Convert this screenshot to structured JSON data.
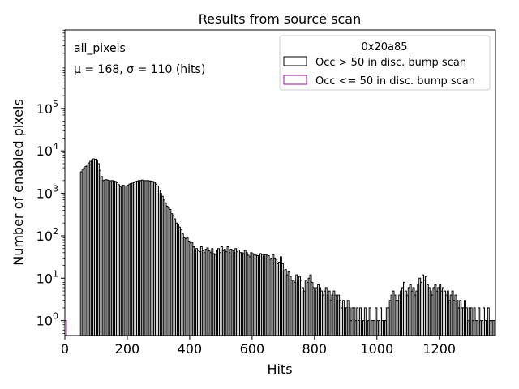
{
  "chart_data": {
    "type": "histogram",
    "title": "Results from source scan",
    "xlabel": "Hits",
    "ylabel": "Number of enabled pixels",
    "xlim": [
      0,
      1380
    ],
    "ylim_log10": [
      -0.35,
      6.85
    ],
    "yscale": "log",
    "bin_width": 5,
    "x_ticks": [
      0,
      200,
      400,
      600,
      800,
      1000,
      1200
    ],
    "y_ticks": [
      {
        "exp": 0,
        "label": "10",
        "sup": "0"
      },
      {
        "exp": 1,
        "label": "10",
        "sup": "1"
      },
      {
        "exp": 2,
        "label": "10",
        "sup": "2"
      },
      {
        "exp": 3,
        "label": "10",
        "sup": "3"
      },
      {
        "exp": 4,
        "label": "10",
        "sup": "4"
      },
      {
        "exp": 5,
        "label": "10",
        "sup": "5"
      }
    ],
    "annotations": {
      "line1": "all_pixels",
      "line2": "μ = 168, σ = 110 (hits)"
    },
    "legend": {
      "title": "0x20a85",
      "position": "top-right",
      "entries": [
        {
          "label": "Occ > 50 in disc. bump scan",
          "color": "#000000"
        },
        {
          "label": "Occ <= 50 in disc. bump scan",
          "color": "#aa00aa"
        }
      ]
    },
    "series": [
      {
        "name": "Occ > 50 in disc. bump scan",
        "color": "#000000",
        "points": [
          [
            50,
            3200
          ],
          [
            55,
            3700
          ],
          [
            60,
            4000
          ],
          [
            65,
            4300
          ],
          [
            70,
            4700
          ],
          [
            75,
            5200
          ],
          [
            80,
            5700
          ],
          [
            85,
            6200
          ],
          [
            90,
            6500
          ],
          [
            95,
            6400
          ],
          [
            100,
            6000
          ],
          [
            105,
            5000
          ],
          [
            110,
            3500
          ],
          [
            115,
            2500
          ],
          [
            120,
            2000
          ],
          [
            125,
            2050
          ],
          [
            130,
            2100
          ],
          [
            135,
            2050
          ],
          [
            140,
            2000
          ],
          [
            145,
            2000
          ],
          [
            150,
            2000
          ],
          [
            155,
            1950
          ],
          [
            160,
            1900
          ],
          [
            165,
            1800
          ],
          [
            170,
            1600
          ],
          [
            175,
            1450
          ],
          [
            180,
            1500
          ],
          [
            185,
            1550
          ],
          [
            190,
            1500
          ],
          [
            195,
            1500
          ],
          [
            200,
            1550
          ],
          [
            205,
            1650
          ],
          [
            210,
            1700
          ],
          [
            215,
            1750
          ],
          [
            220,
            1800
          ],
          [
            225,
            1900
          ],
          [
            230,
            1950
          ],
          [
            235,
            2000
          ],
          [
            240,
            2000
          ],
          [
            245,
            2050
          ],
          [
            250,
            2000
          ],
          [
            255,
            2000
          ],
          [
            260,
            2000
          ],
          [
            265,
            2000
          ],
          [
            270,
            1950
          ],
          [
            275,
            1950
          ],
          [
            280,
            1900
          ],
          [
            285,
            1800
          ],
          [
            290,
            1650
          ],
          [
            295,
            1500
          ],
          [
            300,
            1200
          ],
          [
            305,
            1000
          ],
          [
            310,
            850
          ],
          [
            315,
            700
          ],
          [
            320,
            600
          ],
          [
            325,
            500
          ],
          [
            330,
            450
          ],
          [
            335,
            420
          ],
          [
            340,
            330
          ],
          [
            345,
            300
          ],
          [
            350,
            250
          ],
          [
            355,
            200
          ],
          [
            360,
            180
          ],
          [
            365,
            160
          ],
          [
            370,
            140
          ],
          [
            375,
            110
          ],
          [
            380,
            90
          ],
          [
            385,
            85
          ],
          [
            390,
            90
          ],
          [
            395,
            75
          ],
          [
            400,
            68
          ],
          [
            405,
            70
          ],
          [
            410,
            55
          ],
          [
            415,
            45
          ],
          [
            420,
            50
          ],
          [
            425,
            45
          ],
          [
            430,
            42
          ],
          [
            435,
            55
          ],
          [
            440,
            45
          ],
          [
            445,
            40
          ],
          [
            450,
            48
          ],
          [
            455,
            52
          ],
          [
            460,
            44
          ],
          [
            465,
            40
          ],
          [
            470,
            50
          ],
          [
            475,
            38
          ],
          [
            480,
            36
          ],
          [
            485,
            45
          ],
          [
            490,
            50
          ],
          [
            495,
            40
          ],
          [
            500,
            55
          ],
          [
            505,
            45
          ],
          [
            510,
            48
          ],
          [
            515,
            42
          ],
          [
            520,
            55
          ],
          [
            525,
            40
          ],
          [
            530,
            48
          ],
          [
            535,
            45
          ],
          [
            540,
            40
          ],
          [
            545,
            50
          ],
          [
            550,
            42
          ],
          [
            555,
            46
          ],
          [
            560,
            40
          ],
          [
            565,
            40
          ],
          [
            570,
            38
          ],
          [
            575,
            45
          ],
          [
            580,
            40
          ],
          [
            585,
            35
          ],
          [
            590,
            32
          ],
          [
            595,
            40
          ],
          [
            600,
            38
          ],
          [
            605,
            36
          ],
          [
            610,
            35
          ],
          [
            615,
            34
          ],
          [
            620,
            30
          ],
          [
            625,
            38
          ],
          [
            630,
            36
          ],
          [
            635,
            32
          ],
          [
            640,
            36
          ],
          [
            645,
            35
          ],
          [
            650,
            34
          ],
          [
            655,
            28
          ],
          [
            660,
            30
          ],
          [
            665,
            36
          ],
          [
            670,
            30
          ],
          [
            675,
            28
          ],
          [
            680,
            22
          ],
          [
            685,
            24
          ],
          [
            690,
            32
          ],
          [
            695,
            22
          ],
          [
            700,
            15
          ],
          [
            705,
            16
          ],
          [
            710,
            12
          ],
          [
            715,
            14
          ],
          [
            720,
            11
          ],
          [
            725,
            9
          ],
          [
            730,
            9
          ],
          [
            735,
            8
          ],
          [
            740,
            12
          ],
          [
            745,
            9
          ],
          [
            750,
            11
          ],
          [
            755,
            9
          ],
          [
            760,
            6
          ],
          [
            765,
            5
          ],
          [
            770,
            9
          ],
          [
            775,
            8
          ],
          [
            780,
            10
          ],
          [
            785,
            12
          ],
          [
            790,
            8
          ],
          [
            795,
            6
          ],
          [
            800,
            5
          ],
          [
            805,
            6
          ],
          [
            810,
            7
          ],
          [
            815,
            6
          ],
          [
            820,
            5
          ],
          [
            825,
            4
          ],
          [
            830,
            5
          ],
          [
            835,
            6
          ],
          [
            840,
            4
          ],
          [
            845,
            5
          ],
          [
            850,
            3
          ],
          [
            855,
            4
          ],
          [
            860,
            5
          ],
          [
            865,
            4
          ],
          [
            870,
            3
          ],
          [
            875,
            4
          ],
          [
            880,
            3
          ],
          [
            885,
            2
          ],
          [
            890,
            3
          ],
          [
            895,
            2
          ],
          [
            900,
            2
          ],
          [
            905,
            3
          ],
          [
            910,
            2
          ],
          [
            915,
            1
          ],
          [
            920,
            2
          ],
          [
            925,
            2
          ],
          [
            930,
            1
          ],
          [
            935,
            2
          ],
          [
            940,
            1
          ],
          [
            945,
            2
          ],
          [
            950,
            1
          ],
          [
            955,
            1
          ],
          [
            960,
            2
          ],
          [
            965,
            1
          ],
          [
            970,
            1
          ],
          [
            975,
            2
          ],
          [
            980,
            1
          ],
          [
            985,
            1
          ],
          [
            990,
            1
          ],
          [
            995,
            2
          ],
          [
            1000,
            1
          ],
          [
            1005,
            1
          ],
          [
            1010,
            2
          ],
          [
            1015,
            1
          ],
          [
            1020,
            1
          ],
          [
            1025,
            1
          ],
          [
            1030,
            2
          ],
          [
            1035,
            2
          ],
          [
            1040,
            3
          ],
          [
            1045,
            4
          ],
          [
            1050,
            5
          ],
          [
            1055,
            4
          ],
          [
            1060,
            3
          ],
          [
            1065,
            3
          ],
          [
            1070,
            4
          ],
          [
            1075,
            5
          ],
          [
            1080,
            6
          ],
          [
            1085,
            8
          ],
          [
            1090,
            5
          ],
          [
            1095,
            4
          ],
          [
            1100,
            6
          ],
          [
            1105,
            7
          ],
          [
            1110,
            5
          ],
          [
            1115,
            6
          ],
          [
            1120,
            4
          ],
          [
            1125,
            5
          ],
          [
            1130,
            7
          ],
          [
            1135,
            10
          ],
          [
            1140,
            8
          ],
          [
            1145,
            12
          ],
          [
            1150,
            9
          ],
          [
            1155,
            11
          ],
          [
            1160,
            7
          ],
          [
            1165,
            6
          ],
          [
            1170,
            5
          ],
          [
            1175,
            4
          ],
          [
            1180,
            6
          ],
          [
            1185,
            7
          ],
          [
            1190,
            5
          ],
          [
            1195,
            6
          ],
          [
            1200,
            7
          ],
          [
            1205,
            5
          ],
          [
            1210,
            6
          ],
          [
            1215,
            5
          ],
          [
            1220,
            4
          ],
          [
            1225,
            5
          ],
          [
            1230,
            3
          ],
          [
            1235,
            4
          ],
          [
            1240,
            5
          ],
          [
            1245,
            3
          ],
          [
            1250,
            4
          ],
          [
            1255,
            3
          ],
          [
            1260,
            2
          ],
          [
            1265,
            3
          ],
          [
            1270,
            2
          ],
          [
            1275,
            2
          ],
          [
            1280,
            3
          ],
          [
            1285,
            2
          ],
          [
            1290,
            1
          ],
          [
            1295,
            2
          ],
          [
            1300,
            2
          ],
          [
            1305,
            1
          ],
          [
            1310,
            2
          ],
          [
            1315,
            1
          ],
          [
            1320,
            1
          ],
          [
            1325,
            2
          ],
          [
            1330,
            1
          ],
          [
            1335,
            1
          ],
          [
            1340,
            2
          ],
          [
            1345,
            1
          ],
          [
            1350,
            1
          ],
          [
            1355,
            2
          ],
          [
            1360,
            1
          ],
          [
            1365,
            1
          ],
          [
            1370,
            1
          ],
          [
            1375,
            1
          ]
        ]
      },
      {
        "name": "Occ <= 50 in disc. bump scan",
        "color": "#aa00aa",
        "points": [
          [
            0,
            1
          ]
        ]
      }
    ]
  }
}
